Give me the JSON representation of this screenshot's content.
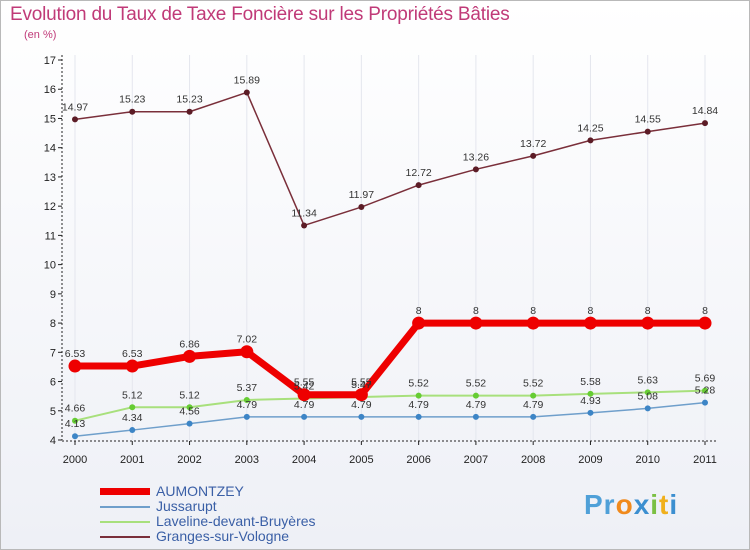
{
  "title": "Evolution du Taux de Taxe Foncière sur les Propriétés Bâties",
  "unit": "(en %)",
  "logo": "Proxiti",
  "chart_data": {
    "type": "line",
    "categories": [
      "2000",
      "2001",
      "2002",
      "2003",
      "2004",
      "2005",
      "2006",
      "2007",
      "2008",
      "2009",
      "2010",
      "2011"
    ],
    "ylim": [
      4,
      17
    ],
    "yticks": [
      4,
      5,
      6,
      7,
      8,
      9,
      10,
      11,
      12,
      13,
      14,
      15,
      16,
      17
    ],
    "series": [
      {
        "name": "AUMONTZEY",
        "color": "#ee0000",
        "point_color": "#ee0000",
        "width": 7,
        "values": [
          6.53,
          6.53,
          6.86,
          7.02,
          5.55,
          5.55,
          8,
          8,
          8,
          8,
          8,
          8
        ],
        "labels": [
          "6.53",
          "6.53",
          "6.86",
          "7.02",
          "5.55",
          "5.55",
          "8",
          "8",
          "8",
          "8",
          "8",
          "8"
        ]
      },
      {
        "name": "Jussarupt",
        "color": "#6f9fcb",
        "point_color": "#3d85c6",
        "width": 1.5,
        "values": [
          4.13,
          4.34,
          4.56,
          4.79,
          4.79,
          4.79,
          4.79,
          4.79,
          4.79,
          4.93,
          5.08,
          5.28
        ],
        "labels": [
          "4.13",
          "4.34",
          "4.56",
          "4.79",
          "4.79",
          "4.79",
          "4.79",
          "4.79",
          "4.79",
          "4.93",
          "5.08",
          "5.28"
        ]
      },
      {
        "name": "Laveline-devant-Bruyères",
        "color": "#a8e07c",
        "point_color": "#66cc33",
        "width": 2,
        "values": [
          4.66,
          5.12,
          5.12,
          5.37,
          5.42,
          5.47,
          5.52,
          5.52,
          5.52,
          5.58,
          5.63,
          5.69
        ],
        "labels": [
          "4.66",
          "5.12",
          "5.12",
          "5.37",
          "5.42",
          "5.47",
          "5.52",
          "5.52",
          "5.52",
          "5.58",
          "5.63",
          "5.69"
        ]
      },
      {
        "name": "Granges-sur-Vologne",
        "color": "#7a2f3a",
        "point_color": "#5c1c26",
        "width": 1.5,
        "values": [
          14.97,
          15.23,
          15.23,
          15.89,
          11.34,
          11.97,
          12.72,
          13.26,
          13.72,
          14.25,
          14.55,
          14.84
        ],
        "labels": [
          "14.97",
          "15.23",
          "15.23",
          "15.89",
          "11.34",
          "11.97",
          "12.72",
          "13.26",
          "13.72",
          "14.25",
          "14.55",
          "14.84"
        ]
      }
    ]
  }
}
